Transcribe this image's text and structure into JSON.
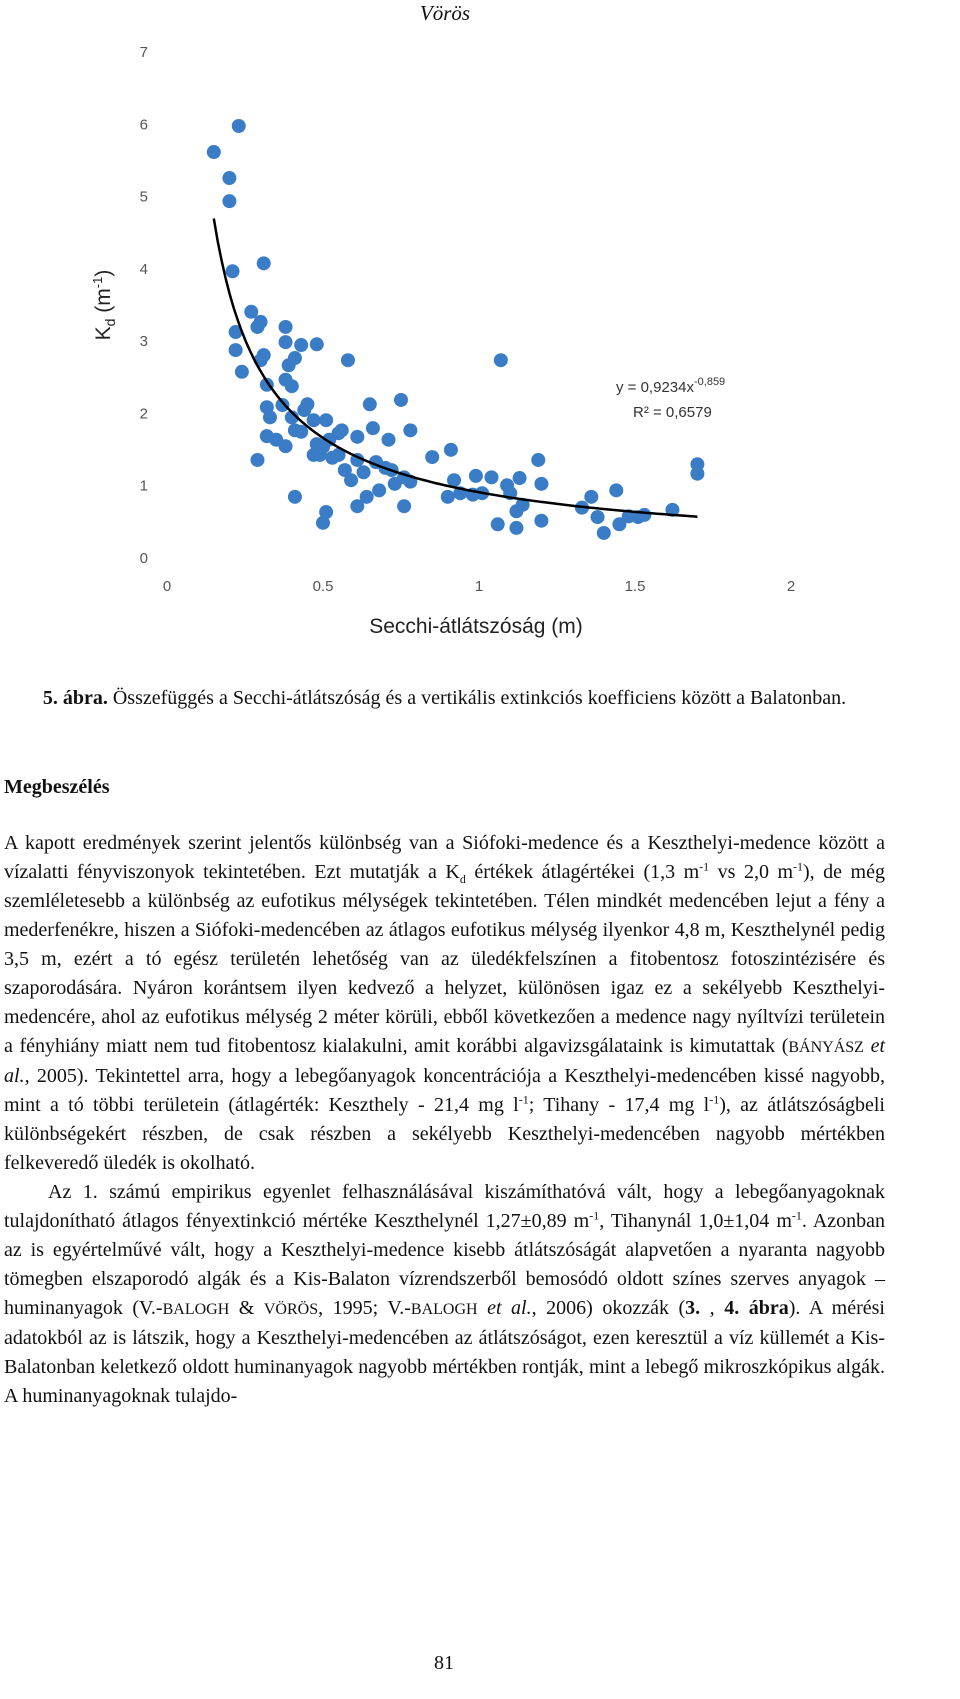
{
  "header": "Vörös",
  "chart_data": {
    "type": "scatter",
    "xlabel": "Secchi-átlátszóság (m)",
    "ylabel": [
      "K",
      "d",
      " (m",
      "-1",
      ")"
    ],
    "color": "#3a7dc6",
    "xlim": [
      0,
      2
    ],
    "xticks": [
      0,
      0.5,
      1,
      1.5,
      2
    ],
    "ylim": [
      0,
      7
    ],
    "yticks": [
      0,
      1,
      2,
      3,
      4,
      5,
      6,
      7
    ],
    "grid": false,
    "x": [
      0.15,
      0.2,
      0.2,
      0.23,
      0.21,
      0.31,
      0.22,
      0.22,
      0.24,
      0.27,
      0.29,
      0.3,
      0.31,
      0.3,
      0.32,
      0.32,
      0.33,
      0.32,
      0.35,
      0.29,
      0.38,
      0.38,
      0.39,
      0.38,
      0.4,
      0.41,
      0.43,
      0.37,
      0.4,
      0.38,
      0.44,
      0.43,
      0.41,
      0.48,
      0.45,
      0.47,
      0.48,
      0.49,
      0.47,
      0.5,
      0.51,
      0.52,
      0.53,
      0.55,
      0.56,
      0.55,
      0.57,
      0.59,
      0.58,
      0.61,
      0.61,
      0.63,
      0.64,
      0.61,
      0.65,
      0.66,
      0.67,
      0.68,
      0.7,
      0.71,
      0.72,
      0.73,
      0.75,
      0.76,
      0.76,
      0.78,
      0.78,
      0.41,
      0.5,
      0.51,
      0.85,
      0.9,
      0.91,
      0.92,
      0.94,
      0.98,
      0.99,
      1.01,
      1.04,
      1.07,
      1.06,
      1.09,
      1.1,
      1.12,
      1.12,
      1.13,
      1.14,
      1.19,
      1.2,
      1.2,
      1.33,
      1.36,
      1.38,
      1.4,
      1.44,
      1.45,
      1.48,
      1.51,
      1.53,
      1.62,
      1.7,
      1.7
    ],
    "values": [
      5.63,
      5.27,
      4.95,
      5.99,
      3.98,
      4.09,
      3.14,
      2.89,
      2.59,
      3.42,
      3.21,
      3.28,
      2.82,
      2.75,
      2.41,
      2.1,
      1.96,
      1.7,
      1.65,
      1.37,
      3.21,
      3.0,
      2.68,
      2.48,
      2.39,
      2.78,
      2.96,
      2.13,
      1.96,
      1.56,
      2.06,
      1.76,
      1.78,
      2.97,
      2.14,
      1.92,
      1.59,
      1.44,
      1.44,
      1.55,
      1.92,
      1.65,
      1.4,
      1.74,
      1.78,
      1.44,
      1.23,
      1.09,
      2.75,
      1.69,
      1.37,
      1.2,
      0.86,
      0.73,
      2.14,
      1.81,
      1.34,
      0.95,
      1.26,
      1.65,
      1.23,
      1.04,
      2.2,
      1.13,
      0.73,
      1.78,
      1.07,
      0.86,
      0.5,
      0.65,
      1.41,
      0.86,
      1.51,
      1.09,
      0.91,
      0.89,
      1.15,
      0.91,
      1.13,
      2.75,
      0.48,
      1.02,
      0.91,
      0.66,
      0.43,
      1.12,
      0.75,
      1.37,
      1.04,
      0.53,
      0.71,
      0.86,
      0.58,
      0.36,
      0.95,
      0.48,
      0.59,
      0.58,
      0.61,
      0.68,
      1.31,
      1.18
    ],
    "trendline": {
      "a": 0.9234,
      "b": -0.859,
      "color": "#000000"
    },
    "annotations": [
      "y = 0,9234x",
      "-0,859",
      "R² = 0,6579"
    ]
  },
  "caption": {
    "label": "5. ábra.",
    "text": " Összefüggés a Secchi-átlátszóság és a vertikális extinkciós koefficiens között a Balatonban."
  },
  "section_title": "Megbeszélés",
  "paragraphs": [
    [
      "A kapott eredmények szerint jelentős különbség van a Siófoki-medence és a Keszthelyi-medence között a vízalatti fényviszonyok tekintetében. Ezt mutatják a K",
      "d",
      " értékek átlagértékei (1,3 m",
      "-1",
      " vs 2,0 m",
      "-1",
      "), de még szemléletesebb a különbség az eufotikus mélységek tekintetében. Télen mindkét medencében lejut a fény a mederfenékre, hiszen a Siófoki-medencében az átlagos eufotikus mélység ilyenkor 4,8 m, Keszthelynél pedig 3,5 m, ezért a tó egész területén lehetőség van az üledékfelszínen a fitobentosz fotoszintézisére és szaporodására. Nyáron korántsem ilyen kedvező a helyzet, különösen igaz ez a sekélyebb Keszthelyi-medencére, ahol az eufotikus mélység 2 méter körüli, ebből következően a medence nagy nyíltvízi területein a fényhiány miatt nem tud fitobentosz kialakulni, amit korábbi algavizsgálataink is kimutattak (",
      "BÁNYÁSZ",
      " et al.",
      ", 2005). Tekintettel arra, hogy a lebegőanyagok koncentrációja a Keszthelyi-medencében kissé nagyobb, mint a tó többi területein (átlagérték: Keszthely - 21,4 mg l",
      "-1",
      "; Tihany - 17,4 mg l",
      "-1",
      "), az átlátszóságbeli különbségekért részben, de csak részben a sekélyebb Keszthelyi-medencében nagyobb mértékben felkeveredő üledék is okolható."
    ],
    [
      "Az 1. számú empirikus egyenlet felhasználásával kiszámíthatóvá vált, hogy a lebegőanyagoknak tulajdonítható átlagos fényextinkció mértéke Keszthelynél 1,27±0,89 m",
      "-1",
      ", Tihanynál 1,0±1,04 m",
      "-1",
      ". Azonban az is egyértelművé vált, hogy a Keszthelyi-medence kisebb átlátszóságát alapvetően a nyaranta nagyobb tömegben elszaporodó algák és a Kis-Balaton vízrendszerből bemosódó oldott színes szerves anyagok – huminanyagok (V.-",
      "BALOGH",
      " & ",
      "VÖRÖS",
      ", 1995; V.-",
      "BALOGH",
      " et al.",
      ", 2006) okozzák (",
      "3.",
      " , ",
      "4. ábra",
      "). A mérési adatokból az is látszik, hogy a Keszthelyi-medencében az átlátszóságot, ezen keresztül a víz küllemét a Kis-Balatonban keletkező oldott huminanyagok nagyobb mértékben rontják, mint a lebegő mikroszkópikus algák. A huminanyagoknak tulajdo-"
    ]
  ],
  "page_number": 81
}
